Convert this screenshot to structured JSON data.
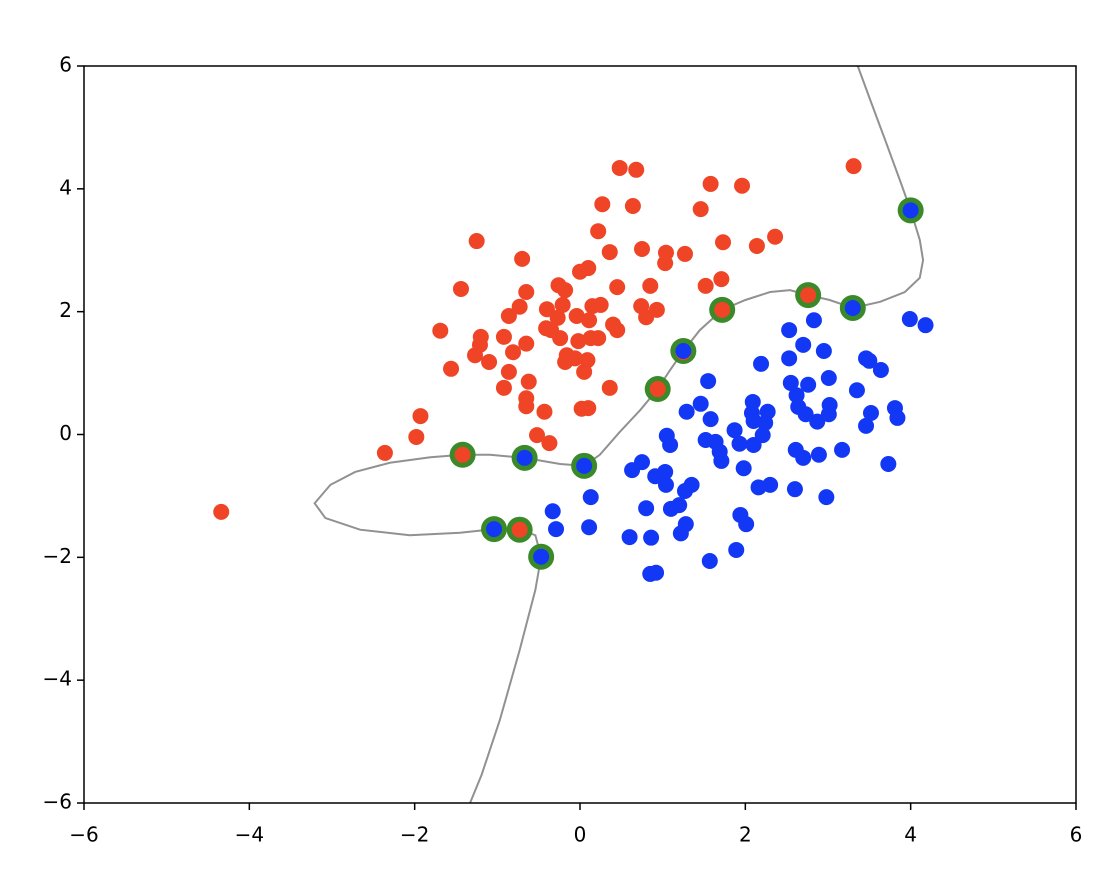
{
  "chart_data": {
    "type": "scatter",
    "xlim": [
      -6,
      6
    ],
    "ylim": [
      -6,
      6
    ],
    "xticks": [
      {
        "value": -6,
        "label": "−6"
      },
      {
        "value": -4,
        "label": "−4"
      },
      {
        "value": -2,
        "label": "−2"
      },
      0,
      2,
      4,
      6
    ],
    "yticks": [
      {
        "value": -6,
        "label": "−6"
      },
      {
        "value": -4,
        "label": "−4"
      },
      {
        "value": -2,
        "label": "−2"
      },
      0,
      2,
      4,
      6
    ],
    "boundary": {
      "color": "#919191",
      "x": [
        3.36,
        3.51,
        3.69,
        3.87,
        4.0,
        4.11,
        4.15,
        4.11,
        3.93,
        3.63,
        3.3,
        3.02,
        2.76,
        2.54,
        2.3,
        2.0,
        1.72,
        1.45,
        1.25,
        1.09,
        0.94,
        0.73,
        0.48,
        0.24,
        0.05,
        -0.24,
        -0.67,
        -1.09,
        -1.42,
        -1.81,
        -2.3,
        -2.72,
        -3.02,
        -3.21,
        -3.08,
        -2.66,
        -2.06,
        -1.45,
        -1.04,
        -0.73,
        -0.54,
        -0.47,
        -0.54,
        -0.73,
        -0.97,
        -1.19,
        -1.33
      ],
      "y": [
        6.0,
        5.45,
        4.8,
        4.14,
        3.65,
        3.17,
        2.84,
        2.55,
        2.32,
        2.16,
        2.06,
        2.19,
        2.27,
        2.35,
        2.32,
        2.19,
        2.03,
        1.7,
        1.36,
        1.05,
        0.74,
        0.4,
        0.04,
        -0.33,
        -0.51,
        -0.48,
        -0.38,
        -0.33,
        -0.33,
        -0.37,
        -0.46,
        -0.61,
        -0.82,
        -1.12,
        -1.36,
        -1.55,
        -1.64,
        -1.6,
        -1.54,
        -1.55,
        -1.64,
        -1.99,
        -2.53,
        -3.51,
        -4.65,
        -5.54,
        -6.0
      ]
    },
    "support_vectors": {
      "color": "#3a8a2a",
      "x": [
        4.0,
        3.3,
        2.76,
        1.72,
        1.25,
        0.94,
        0.05,
        -0.67,
        -1.42,
        -1.04,
        -0.73,
        -0.47
      ],
      "y": [
        3.65,
        2.06,
        2.27,
        2.03,
        1.36,
        0.74,
        -0.51,
        -0.38,
        -0.33,
        -1.54,
        -1.55,
        -1.99
      ]
    },
    "series": [
      {
        "color": "#ef4526",
        "x": [
          -4.34,
          -2.36,
          -1.98,
          -1.93,
          -1.56,
          -1.69,
          -1.44,
          -1.25,
          -1.27,
          -1.2,
          -1.21,
          -1.1,
          -0.92,
          -0.86,
          -0.81,
          -0.92,
          -0.86,
          -0.73,
          -0.65,
          -0.7,
          -0.65,
          -0.65,
          -0.62,
          -0.65,
          -0.52,
          -0.43,
          -0.37,
          -0.41,
          -0.4,
          -0.35,
          -0.26,
          -0.18,
          -0.21,
          -0.27,
          -0.24,
          -0.16,
          -0.18,
          -0.02,
          -0.04,
          0.0,
          0.1,
          0.15,
          0.25,
          0.11,
          -0.06,
          0.05,
          0.09,
          0.13,
          0.22,
          0.02,
          0.1,
          0.36,
          0.4,
          0.45,
          0.45,
          0.36,
          0.27,
          0.22,
          0.48,
          0.68,
          0.64,
          0.74,
          0.8,
          0.85,
          0.93,
          0.75,
          1.03,
          1.04,
          1.27,
          1.46,
          1.52,
          1.58,
          1.71,
          1.73,
          1.96,
          2.14,
          2.36,
          3.31,
          1.25,
          -1.42,
          -0.73,
          0.94,
          1.72,
          2.76
        ],
        "y": [
          -1.26,
          -0.3,
          -0.04,
          0.3,
          1.07,
          1.69,
          2.37,
          3.15,
          1.29,
          1.59,
          1.46,
          1.18,
          0.76,
          1.02,
          1.34,
          1.59,
          1.93,
          2.08,
          2.32,
          2.86,
          1.48,
          0.46,
          0.86,
          0.59,
          -0.01,
          0.37,
          -0.14,
          1.73,
          2.04,
          1.7,
          2.43,
          2.35,
          2.11,
          1.9,
          1.57,
          1.29,
          1.18,
          1.52,
          1.93,
          2.65,
          2.71,
          2.09,
          2.11,
          1.86,
          1.24,
          1.02,
          1.21,
          1.57,
          1.57,
          0.42,
          0.43,
          0.76,
          1.79,
          1.7,
          2.4,
          2.97,
          3.75,
          3.31,
          4.34,
          4.31,
          3.72,
          2.09,
          1.91,
          2.42,
          2.03,
          3.02,
          2.79,
          2.96,
          2.94,
          3.67,
          2.42,
          4.08,
          2.53,
          3.13,
          4.05,
          3.07,
          3.22,
          4.37,
          1.34,
          -0.33,
          -1.55,
          0.74,
          2.03,
          2.27
        ]
      },
      {
        "color": "#1238f5",
        "x": [
          4.0,
          3.3,
          1.25,
          0.05,
          -0.67,
          -1.04,
          -0.47,
          -0.33,
          -0.29,
          0.11,
          0.13,
          0.6,
          0.63,
          0.75,
          0.8,
          0.86,
          0.85,
          0.92,
          0.91,
          1.03,
          1.05,
          1.09,
          1.04,
          1.1,
          1.2,
          1.27,
          1.35,
          1.28,
          1.22,
          1.29,
          1.46,
          1.55,
          1.58,
          1.52,
          1.64,
          1.69,
          1.71,
          1.57,
          1.87,
          1.93,
          1.98,
          1.94,
          2.01,
          1.89,
          2.09,
          2.08,
          2.1,
          2.1,
          2.19,
          2.16,
          2.27,
          2.24,
          2.21,
          2.3,
          2.53,
          2.53,
          2.55,
          2.61,
          2.6,
          2.62,
          2.64,
          2.7,
          2.76,
          2.73,
          2.7,
          2.83,
          2.87,
          2.89,
          2.95,
          3.01,
          3.02,
          3.01,
          2.98,
          3.17,
          3.35,
          3.46,
          3.5,
          3.52,
          3.46,
          3.64,
          3.73,
          3.81,
          3.84,
          3.99,
          4.18
        ],
        "y": [
          3.65,
          2.06,
          1.36,
          -0.51,
          -0.38,
          -1.54,
          -1.99,
          -1.25,
          -1.54,
          -1.51,
          -1.02,
          -1.67,
          -0.58,
          -0.45,
          -1.2,
          -1.68,
          -2.27,
          -2.25,
          -0.68,
          -0.61,
          -0.02,
          -0.17,
          -0.82,
          -1.21,
          -1.15,
          -0.92,
          -0.82,
          -1.46,
          -1.61,
          0.37,
          0.5,
          0.87,
          0.25,
          -0.09,
          -0.12,
          -0.28,
          -0.43,
          -2.06,
          0.07,
          -0.15,
          -0.55,
          -1.31,
          -1.46,
          -1.88,
          0.53,
          0.35,
          0.22,
          -0.17,
          1.15,
          -0.86,
          0.37,
          0.19,
          -0.01,
          -0.82,
          1.7,
          1.24,
          0.84,
          -0.25,
          -0.89,
          0.64,
          0.45,
          1.46,
          0.81,
          0.33,
          -0.38,
          1.86,
          0.21,
          -0.33,
          1.36,
          0.92,
          0.48,
          0.33,
          -1.02,
          -0.25,
          0.72,
          1.24,
          1.2,
          0.35,
          0.14,
          1.05,
          -0.48,
          0.43,
          0.27,
          1.88,
          1.78
        ]
      }
    ]
  }
}
